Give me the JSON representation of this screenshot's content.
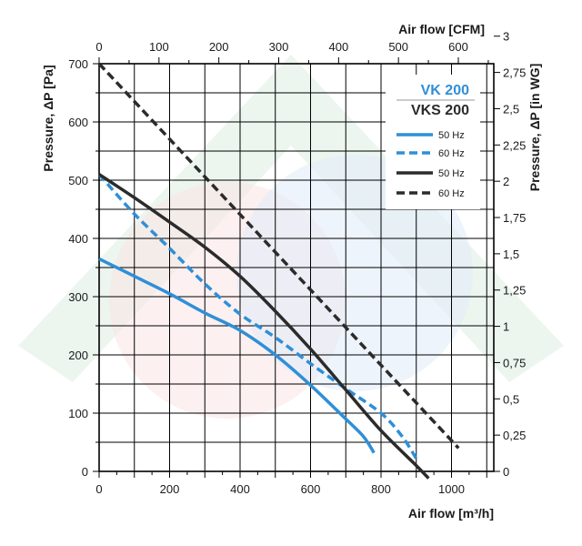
{
  "chart_data": {
    "type": "line",
    "xlabel_bottom": "Air flow [m³/h]",
    "xlabel_top": "Air flow [CFM]",
    "ylabel_left": "Pressure, ΔP [Pa]",
    "ylabel_right": "Pressure, ΔP [in WG]",
    "xlim": [
      0,
      1120
    ],
    "ylim": [
      0,
      700
    ],
    "x_ticks": [
      0,
      200,
      400,
      600,
      800,
      1000
    ],
    "x_tick_labels": [
      "0",
      "200",
      "400",
      "600",
      "800",
      "1000"
    ],
    "y_ticks": [
      0,
      100,
      200,
      300,
      400,
      500,
      600,
      700
    ],
    "y_tick_labels": [
      "0",
      "100",
      "200",
      "300",
      "400",
      "500",
      "600",
      "700"
    ],
    "top_ticks_cfm": [
      0,
      100,
      200,
      300,
      400,
      500,
      600
    ],
    "top_tick_labels": [
      "0",
      "100",
      "200",
      "300",
      "400",
      "500",
      "600"
    ],
    "right_ticks_inwg": [
      0,
      0.25,
      0.5,
      0.75,
      1,
      1.25,
      1.5,
      1.75,
      2,
      2.25,
      2.5,
      2.75,
      3
    ],
    "right_tick_labels": [
      "0",
      "0,25",
      "0,5",
      "0,75",
      "1",
      "1,25",
      "1,5",
      "1,75",
      "2",
      "2,25",
      "2,5",
      "2,75",
      "3"
    ],
    "legend": {
      "placement": "top-right",
      "groups": [
        {
          "title": "VK 200",
          "color": "#2f8fd8"
        },
        {
          "title": "VKS 200",
          "color": "#2b2b2b"
        }
      ]
    },
    "series": [
      {
        "name": "50 Hz",
        "model": "VK 200",
        "color": "#2f8fd8",
        "dash": false,
        "x": [
          0,
          100,
          200,
          300,
          400,
          500,
          600,
          700,
          750,
          780
        ],
        "y": [
          365,
          335,
          305,
          272,
          242,
          200,
          148,
          90,
          60,
          32
        ]
      },
      {
        "name": "60 Hz",
        "model": "VK 200",
        "color": "#2f8fd8",
        "dash": true,
        "x": [
          0,
          100,
          200,
          300,
          400,
          500,
          600,
          700,
          800,
          860,
          900
        ],
        "y": [
          510,
          442,
          383,
          322,
          270,
          230,
          185,
          142,
          100,
          60,
          22
        ]
      },
      {
        "name": "50 Hz",
        "model": "VKS 200",
        "color": "#2b2b2b",
        "dash": false,
        "x": [
          0,
          100,
          200,
          300,
          400,
          500,
          600,
          700,
          800,
          900,
          935
        ],
        "y": [
          510,
          470,
          428,
          385,
          335,
          275,
          210,
          140,
          70,
          10,
          -12
        ]
      },
      {
        "name": "60 Hz",
        "model": "VKS 200",
        "color": "#2b2b2b",
        "dash": true,
        "x": [
          0,
          1020
        ],
        "y": [
          700,
          40
        ]
      }
    ]
  }
}
